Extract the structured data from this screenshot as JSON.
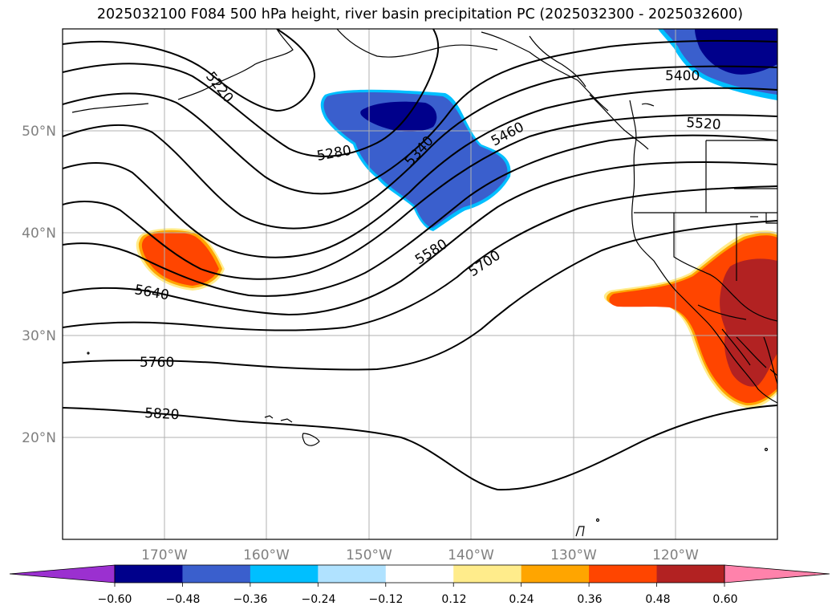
{
  "title": "2025032100 F084 500 hPa height, river basin precipitation PC (2025032300 - 2025032600)",
  "lat_labels": [
    "50°N",
    "40°N",
    "30°N",
    "20°N"
  ],
  "lon_labels": [
    "170°W",
    "160°W",
    "150°W",
    "140°W",
    "130°W",
    "120°W"
  ],
  "contour_labels": [
    "5220",
    "5280",
    "5340",
    "5400",
    "5460",
    "5520",
    "5580",
    "5640",
    "5700",
    "5760",
    "5820"
  ],
  "colorbar": {
    "ticks": [
      "−0.60",
      "−0.48",
      "−0.36",
      "−0.24",
      "−0.12",
      "0.12",
      "0.24",
      "0.36",
      "0.48",
      "0.60"
    ],
    "colors": [
      "#9b30d0",
      "#00008b",
      "#3a5fcd",
      "#00bfff",
      "#b0e2ff",
      "#ffffff",
      "#ffec8b",
      "#ffa500",
      "#ff4500",
      "#b22222",
      "#ff82ab"
    ]
  },
  "colors": {
    "strong_negative": "#00008b",
    "negative": "#3a5fcd",
    "weak_negative": "#00bfff",
    "positive": "#ff4500",
    "strong_positive": "#b22222",
    "weak_positive": "#ffec8b"
  }
}
